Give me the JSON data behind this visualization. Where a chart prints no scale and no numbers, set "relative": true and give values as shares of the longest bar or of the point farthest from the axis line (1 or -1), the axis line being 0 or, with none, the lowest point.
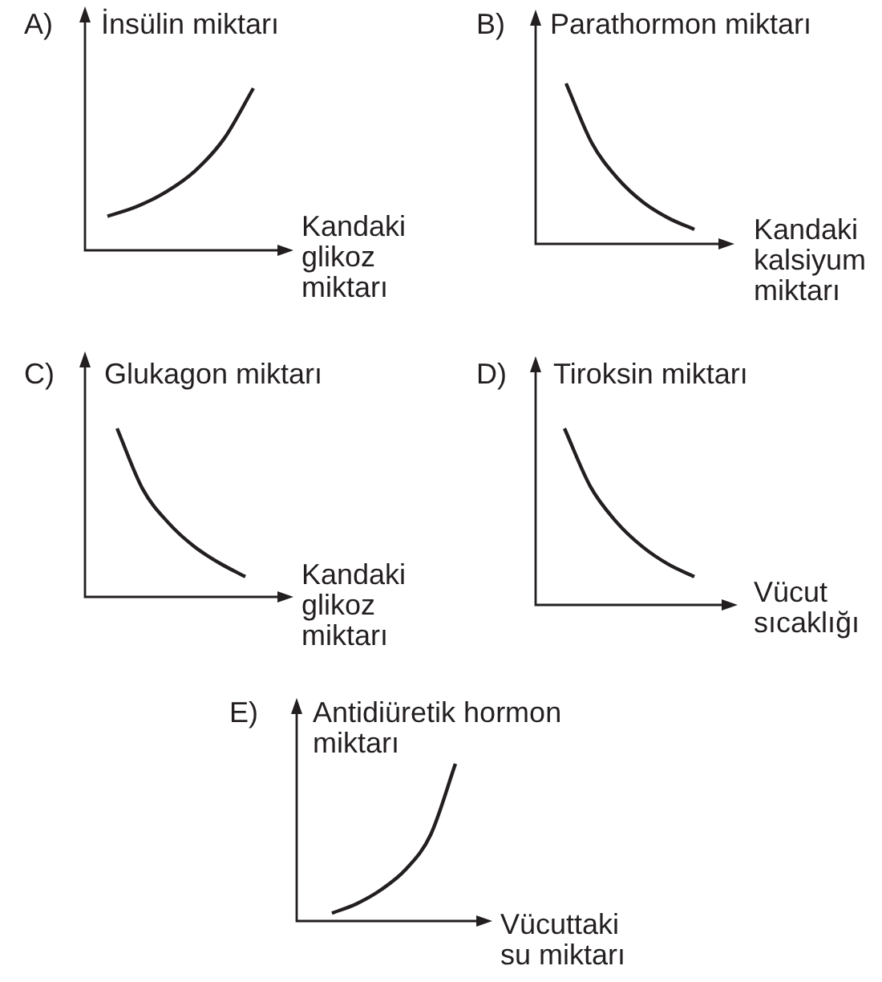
{
  "chart_data": [
    {
      "type": "line",
      "title": "A)",
      "ylabel": "İnsülin miktarı",
      "xlabel": "Kandaki\nglikoz\nmiktarı",
      "categories": [
        null,
        null,
        null,
        null,
        null,
        null
      ],
      "values": [
        0.21,
        0.27,
        0.36,
        0.49,
        0.69,
        1
      ],
      "color": "#231f20",
      "relative": true
    },
    {
      "type": "line",
      "title": "B)",
      "ylabel": "Parathormon miktarı",
      "xlabel": "Kandaki\nkalsiyum\nmiktarı",
      "categories": [
        null,
        null,
        null,
        null,
        null,
        null
      ],
      "values": [
        1,
        0.63,
        0.41,
        0.26,
        0.16,
        0.09
      ],
      "color": "#231f20",
      "relative": true
    },
    {
      "type": "line",
      "title": "C)",
      "ylabel": "Glukagon miktarı",
      "xlabel": "Kandaki\nglikoz\nmiktarı",
      "categories": [
        null,
        null,
        null,
        null,
        null,
        null
      ],
      "values": [
        1,
        0.64,
        0.44,
        0.3,
        0.2,
        0.12
      ],
      "color": "#231f20",
      "relative": true
    },
    {
      "type": "line",
      "title": "D)",
      "ylabel": "Tiroksin miktarı",
      "xlabel": "Vücut\nsıcaklığı",
      "categories": [
        null,
        null,
        null,
        null,
        null,
        null
      ],
      "values": [
        1,
        0.67,
        0.47,
        0.33,
        0.23,
        0.16
      ],
      "color": "#231f20",
      "relative": true
    },
    {
      "type": "line",
      "title": "E)",
      "ylabel": "Antidiüretik hormon\nmiktarı",
      "xlabel": "Vücuttaki\nsu miktarı",
      "categories": [
        null,
        null,
        null,
        null,
        null,
        null
      ],
      "values": [
        0.05,
        0.11,
        0.2,
        0.33,
        0.55,
        1
      ],
      "color": "#231f20",
      "relative": true
    }
  ]
}
